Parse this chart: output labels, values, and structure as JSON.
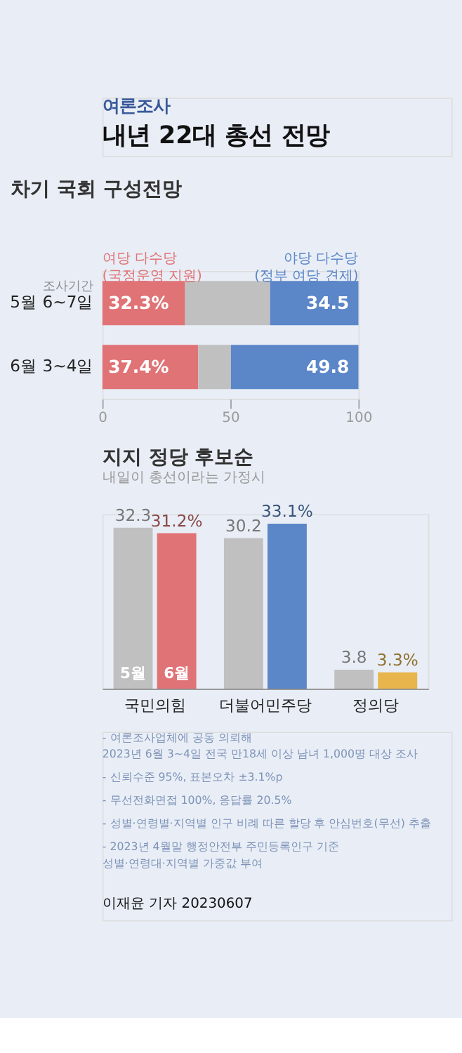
{
  "chart_data": [
    {
      "type": "other",
      "title": "내년 22대 총선 전망",
      "subtitle": "여론조사"
    },
    {
      "type": "bar",
      "orientation": "horizontal",
      "stacked": true,
      "title": "차기 국회 구성전망",
      "categories": [
        "5월 6~7일",
        "6월 3~4일"
      ],
      "annotations": [
        "조사기간"
      ],
      "xlim": [
        0,
        100
      ],
      "xticks": [
        0,
        50,
        100
      ],
      "grid": false,
      "series": [
        {
          "name": "여당 다수당\n(국정운영 지원)",
          "color": "#e07376",
          "values": [
            32.3,
            37.4
          ],
          "value_labels": [
            "32.3%",
            "37.4%"
          ]
        },
        {
          "color": "#c1c0c1",
          "values": [
            33.2,
            12.8
          ]
        },
        {
          "name": "야당 다수당\n(정부 여당 견제)",
          "color": "#5b86c8",
          "values": [
            34.5,
            49.8
          ],
          "value_labels": [
            "34.5",
            "49.8"
          ]
        }
      ]
    },
    {
      "type": "bar",
      "title": "지지 정당 후보순",
      "subtitle": "내일이 총선이라는 가정시",
      "categories": [
        "국민의힘",
        "더불어민주당",
        "정의당"
      ],
      "series": [
        {
          "name": "5월",
          "color": "#c1c0c1",
          "values": [
            32.3,
            30.2,
            3.8
          ],
          "value_labels": [
            "32.3",
            "30.2",
            "3.8"
          ]
        },
        {
          "name": "6월",
          "colors": [
            "#e07376",
            "#5b86c8",
            "#e8b54c"
          ],
          "values": [
            31.2,
            33.1,
            3.3
          ],
          "value_labels": [
            "31.2%",
            "33.1%",
            "3.3%"
          ]
        }
      ],
      "annotations": [
        "- 여론조사업체에 공동 의뢰해\n  2023년 6월 3~4일 전국 만18세 이상 남녀 1,000명 대상 조사",
        "- 신뢰수준 95%, 표본오차 ±3.1%p",
        "- 무선전화면접 100%, 응답률 20.5%",
        "- 성별·연령별·지역별 인구 비례 따른 할당 후 안심번호(무선) 추출",
        "- 2023년 4월말 행정안전부 주민등록인구 기준\n  성별·연령대·지역별 가중값 부여",
        "이재윤 기자 20230607"
      ]
    }
  ]
}
